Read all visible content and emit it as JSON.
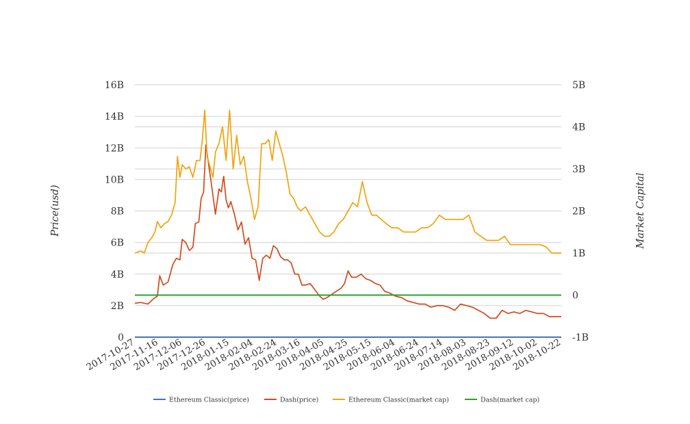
{
  "chart_data": {
    "type": "line",
    "ylabel_left": "Price(usd)",
    "ylabel_right": "Market Capital",
    "yticks_left": [
      "0",
      "2B",
      "4B",
      "6B",
      "8B",
      "10B",
      "12B",
      "14B",
      "16B"
    ],
    "yticks_right": [
      "-1B",
      "0",
      "1B",
      "2B",
      "3B",
      "4B",
      "5B"
    ],
    "ylim_left": [
      0,
      16000000000
    ],
    "ylim_right": [
      -1000000000,
      5000000000
    ],
    "xticks": [
      "2017-10-27",
      "2017-11-16",
      "2017-12-06",
      "2017-12-26",
      "2018-01-15",
      "2018-02-04",
      "2018-02-24",
      "2018-03-16",
      "2018-04-05",
      "2018-04-25",
      "2018-05-15",
      "2018-06-04",
      "2018-06-24",
      "2018-07-14",
      "2018-08-03",
      "2018-08-23",
      "2018-09-12",
      "2018-10-02",
      "2018-10-22"
    ],
    "xlim": [
      "2017-10-27",
      "2018-10-22"
    ],
    "grid": true,
    "legend_position": "bottom",
    "colors": {
      "etc_price": "#4472c4",
      "dash_price": "#d04a1c",
      "etc_mcap": "#f0a30a",
      "dash_mcap": "#2ca02c",
      "grid": "#d0d0d0"
    },
    "series": [
      {
        "name": "Ethereum Classic(price)",
        "axis": "left",
        "x": [
          "2017-10-27",
          "2018-10-22"
        ],
        "y": [
          0,
          0
        ]
      },
      {
        "name": "Dash(price)",
        "axis": "left",
        "x": [
          "2017-10-27",
          "2017-11-01",
          "2017-11-07",
          "2017-11-12",
          "2017-11-15",
          "2017-11-17",
          "2017-11-20",
          "2017-11-24",
          "2017-11-28",
          "2017-12-01",
          "2017-12-04",
          "2017-12-06",
          "2017-12-09",
          "2017-12-12",
          "2017-12-15",
          "2017-12-17",
          "2017-12-20",
          "2017-12-22",
          "2017-12-24",
          "2017-12-26",
          "2017-12-28",
          "2017-12-31",
          "2018-01-03",
          "2018-01-06",
          "2018-01-08",
          "2018-01-10",
          "2018-01-12",
          "2018-01-14",
          "2018-01-16",
          "2018-01-19",
          "2018-01-22",
          "2018-01-25",
          "2018-01-28",
          "2018-01-31",
          "2018-02-03",
          "2018-02-06",
          "2018-02-09",
          "2018-02-12",
          "2018-02-15",
          "2018-02-18",
          "2018-02-21",
          "2018-02-24",
          "2018-02-27",
          "2018-03-02",
          "2018-03-05",
          "2018-03-08",
          "2018-03-11",
          "2018-03-14",
          "2018-03-17",
          "2018-03-20",
          "2018-03-24",
          "2018-03-28",
          "2018-04-01",
          "2018-04-04",
          "2018-04-07",
          "2018-04-11",
          "2018-04-15",
          "2018-04-19",
          "2018-04-22",
          "2018-04-25",
          "2018-04-28",
          "2018-05-02",
          "2018-05-06",
          "2018-05-10",
          "2018-05-14",
          "2018-05-18",
          "2018-05-22",
          "2018-05-26",
          "2018-05-30",
          "2018-06-04",
          "2018-06-09",
          "2018-06-14",
          "2018-06-19",
          "2018-06-24",
          "2018-06-29",
          "2018-07-04",
          "2018-07-09",
          "2018-07-14",
          "2018-07-19",
          "2018-07-24",
          "2018-07-29",
          "2018-08-03",
          "2018-08-08",
          "2018-08-13",
          "2018-08-18",
          "2018-08-23",
          "2018-08-28",
          "2018-09-02",
          "2018-09-07",
          "2018-09-12",
          "2018-09-17",
          "2018-09-22",
          "2018-09-27",
          "2018-10-02",
          "2018-10-07",
          "2018-10-12",
          "2018-10-17",
          "2018-10-22"
        ],
        "y": [
          2150000000,
          2200000000,
          2100000000,
          2450000000,
          2600000000,
          3900000000,
          3300000000,
          3500000000,
          4600000000,
          5000000000,
          4900000000,
          6200000000,
          6000000000,
          5500000000,
          5700000000,
          7200000000,
          7300000000,
          8800000000,
          9200000000,
          12200000000,
          11100000000,
          9500000000,
          7800000000,
          9400000000,
          9200000000,
          10200000000,
          8700000000,
          8200000000,
          8600000000,
          7800000000,
          6800000000,
          7300000000,
          5900000000,
          6300000000,
          5000000000,
          4900000000,
          3600000000,
          5000000000,
          5200000000,
          5000000000,
          5800000000,
          5600000000,
          5100000000,
          4900000000,
          4900000000,
          4700000000,
          4000000000,
          4000000000,
          3300000000,
          3300000000,
          3400000000,
          3000000000,
          2600000000,
          2400000000,
          2500000000,
          2700000000,
          2900000000,
          3100000000,
          3400000000,
          4200000000,
          3800000000,
          3800000000,
          4000000000,
          3700000000,
          3600000000,
          3400000000,
          3300000000,
          2900000000,
          2800000000,
          2600000000,
          2500000000,
          2300000000,
          2200000000,
          2100000000,
          2100000000,
          1900000000,
          2000000000,
          2000000000,
          1900000000,
          1700000000,
          2100000000,
          2000000000,
          1900000000,
          1700000000,
          1500000000,
          1200000000,
          1200000000,
          1700000000,
          1500000000,
          1600000000,
          1500000000,
          1700000000,
          1600000000,
          1500000000,
          1500000000,
          1300000000,
          1300000000,
          1300000000
        ]
      },
      {
        "name": "Ethereum Classic(market cap)",
        "axis": "right",
        "x": [
          "2017-10-27",
          "2017-11-01",
          "2017-11-04",
          "2017-11-07",
          "2017-11-10",
          "2017-11-13",
          "2017-11-15",
          "2017-11-18",
          "2017-11-21",
          "2017-11-24",
          "2017-11-27",
          "2017-11-30",
          "2017-12-02",
          "2017-12-04",
          "2017-12-06",
          "2017-12-09",
          "2017-12-12",
          "2017-12-15",
          "2017-12-18",
          "2017-12-21",
          "2017-12-23",
          "2017-12-25",
          "2017-12-27",
          "2017-12-29",
          "2018-01-01",
          "2018-01-03",
          "2018-01-06",
          "2018-01-09",
          "2018-01-12",
          "2018-01-15",
          "2018-01-18",
          "2018-01-21",
          "2018-01-24",
          "2018-01-27",
          "2018-01-30",
          "2018-02-02",
          "2018-02-05",
          "2018-02-08",
          "2018-02-11",
          "2018-02-14",
          "2018-02-17",
          "2018-02-20",
          "2018-02-23",
          "2018-02-26",
          "2018-03-01",
          "2018-03-04",
          "2018-03-07",
          "2018-03-10",
          "2018-03-13",
          "2018-03-16",
          "2018-03-20",
          "2018-03-24",
          "2018-03-28",
          "2018-04-01",
          "2018-04-05",
          "2018-04-09",
          "2018-04-13",
          "2018-04-17",
          "2018-04-21",
          "2018-04-25",
          "2018-04-29",
          "2018-05-03",
          "2018-05-07",
          "2018-05-11",
          "2018-05-15",
          "2018-05-19",
          "2018-05-23",
          "2018-05-27",
          "2018-06-01",
          "2018-06-06",
          "2018-06-11",
          "2018-06-16",
          "2018-06-21",
          "2018-06-26",
          "2018-07-01",
          "2018-07-06",
          "2018-07-11",
          "2018-07-16",
          "2018-07-21",
          "2018-07-26",
          "2018-07-31",
          "2018-08-05",
          "2018-08-10",
          "2018-08-15",
          "2018-08-20",
          "2018-08-25",
          "2018-08-30",
          "2018-09-04",
          "2018-09-09",
          "2018-09-14",
          "2018-09-19",
          "2018-09-24",
          "2018-09-29",
          "2018-10-04",
          "2018-10-09",
          "2018-10-14",
          "2018-10-19",
          "2018-10-22"
        ],
        "y": [
          1000000000,
          1050000000,
          1000000000,
          1250000000,
          1350000000,
          1500000000,
          1750000000,
          1600000000,
          1700000000,
          1750000000,
          1900000000,
          2200000000,
          3300000000,
          2800000000,
          3100000000,
          3000000000,
          3050000000,
          2800000000,
          3200000000,
          3200000000,
          3700000000,
          4400000000,
          3300000000,
          3100000000,
          2800000000,
          3400000000,
          3600000000,
          4000000000,
          3200000000,
          4400000000,
          3000000000,
          3800000000,
          3100000000,
          3300000000,
          2700000000,
          2300000000,
          1800000000,
          2100000000,
          3600000000,
          3600000000,
          3700000000,
          3200000000,
          3900000000,
          3600000000,
          3300000000,
          2900000000,
          2400000000,
          2300000000,
          2100000000,
          2000000000,
          2100000000,
          1900000000,
          1700000000,
          1500000000,
          1400000000,
          1400000000,
          1500000000,
          1700000000,
          1800000000,
          2000000000,
          2200000000,
          2100000000,
          2700000000,
          2200000000,
          1900000000,
          1900000000,
          1800000000,
          1700000000,
          1600000000,
          1600000000,
          1500000000,
          1500000000,
          1500000000,
          1600000000,
          1600000000,
          1700000000,
          1900000000,
          1800000000,
          1800000000,
          1800000000,
          1800000000,
          1900000000,
          1500000000,
          1400000000,
          1300000000,
          1300000000,
          1300000000,
          1400000000,
          1200000000,
          1200000000,
          1200000000,
          1200000000,
          1200000000,
          1200000000,
          1150000000,
          1000000000,
          1000000000,
          1000000000
        ]
      },
      {
        "name": "Dash(market cap)",
        "axis": "right",
        "x": [
          "2017-10-27",
          "2018-10-22"
        ],
        "y": [
          0,
          0
        ]
      }
    ]
  }
}
